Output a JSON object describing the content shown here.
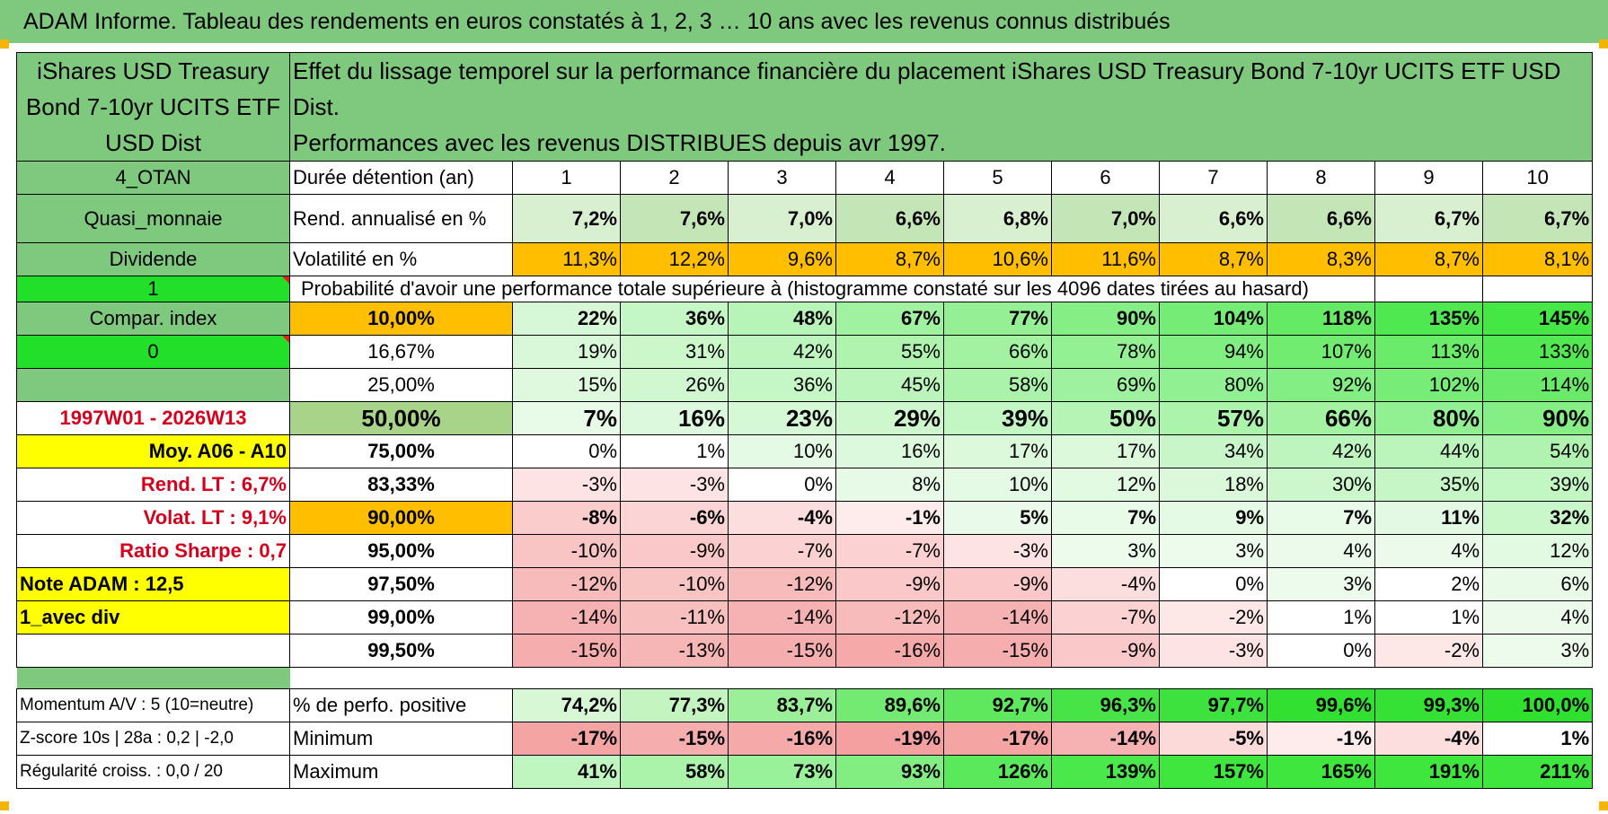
{
  "title": "ADAM Informe. Tableau des rendements en euros constatés à 1, 2, 3 … 10 ans avec les revenus connus distribués",
  "fund_name": "iShares USD Treasury Bond 7-10yr UCITS ETF USD Dist",
  "header_text": {
    "line1": "Effet du lissage temporel sur la performance financière du placement iShares USD Treasury Bond 7-10yr UCITS ETF USD Dist.",
    "line2": "Performances avec les revenus DISTRIBUES depuis avr 1997."
  },
  "side": {
    "category": "4_OTAN",
    "class": "Quasi_monnaie",
    "dividend_label": "Dividende",
    "dividend_value": "1",
    "compar_label": "Compar. index",
    "compar_value": "0",
    "period": "1997W01 - 2026W13",
    "avg": "Moy. A06 - A10",
    "rend_lt": "Rend. LT :   6,7%",
    "volat_lt": "Volat. LT :   9,1%",
    "sharpe": "Ratio Sharpe :    0,7",
    "note": "Note ADAM : 12,5",
    "avec_div": "1_avec div",
    "momentum": "Momentum A/V : 5 (10=neutre)",
    "zscore": "Z-score 10s | 28a : 0,2 | -2,0",
    "regularite": "Régularité croiss. : 0,0 / 20"
  },
  "years_label": "Durée détention (an)",
  "years": [
    "1",
    "2",
    "3",
    "4",
    "5",
    "6",
    "7",
    "8",
    "9",
    "10"
  ],
  "rend": {
    "label": "Rend. annualisé en %",
    "values": [
      "7,2%",
      "7,6%",
      "7,0%",
      "6,6%",
      "6,8%",
      "7,0%",
      "6,6%",
      "6,6%",
      "6,7%",
      "6,7%"
    ]
  },
  "vol": {
    "label": "Volatilité en %",
    "values": [
      "11,3%",
      "12,2%",
      "9,6%",
      "8,7%",
      "10,6%",
      "11,6%",
      "8,7%",
      "8,3%",
      "8,7%",
      "8,1%"
    ]
  },
  "prob_title": "Probabilité d'avoir une performance totale supérieure à (histogramme constaté sur les 4096 dates tirées au hasard)",
  "percentiles": [
    {
      "label": "10,00%",
      "values": [
        "22%",
        "36%",
        "48%",
        "67%",
        "77%",
        "90%",
        "104%",
        "118%",
        "135%",
        "145%"
      ]
    },
    {
      "label": "16,67%",
      "values": [
        "19%",
        "31%",
        "42%",
        "55%",
        "66%",
        "78%",
        "94%",
        "107%",
        "113%",
        "133%"
      ]
    },
    {
      "label": "25,00%",
      "values": [
        "15%",
        "26%",
        "36%",
        "45%",
        "58%",
        "69%",
        "80%",
        "92%",
        "102%",
        "114%"
      ]
    },
    {
      "label": "50,00%",
      "values": [
        "7%",
        "16%",
        "23%",
        "29%",
        "39%",
        "50%",
        "57%",
        "66%",
        "80%",
        "90%"
      ]
    },
    {
      "label": "75,00%",
      "values": [
        "0%",
        "1%",
        "10%",
        "16%",
        "17%",
        "17%",
        "34%",
        "42%",
        "44%",
        "54%"
      ]
    },
    {
      "label": "83,33%",
      "values": [
        "-3%",
        "-3%",
        "0%",
        "8%",
        "10%",
        "12%",
        "18%",
        "30%",
        "35%",
        "39%"
      ]
    },
    {
      "label": "90,00%",
      "values": [
        "-8%",
        "-6%",
        "-4%",
        "-1%",
        "5%",
        "7%",
        "9%",
        "7%",
        "11%",
        "32%"
      ]
    },
    {
      "label": "95,00%",
      "values": [
        "-10%",
        "-9%",
        "-7%",
        "-7%",
        "-3%",
        "3%",
        "3%",
        "4%",
        "4%",
        "12%"
      ]
    },
    {
      "label": "97,50%",
      "values": [
        "-12%",
        "-10%",
        "-12%",
        "-9%",
        "-9%",
        "-4%",
        "0%",
        "3%",
        "2%",
        "6%"
      ]
    },
    {
      "label": "99,00%",
      "values": [
        "-14%",
        "-11%",
        "-14%",
        "-12%",
        "-14%",
        "-7%",
        "-2%",
        "1%",
        "1%",
        "4%"
      ]
    },
    {
      "label": "99,50%",
      "values": [
        "-15%",
        "-13%",
        "-15%",
        "-16%",
        "-15%",
        "-9%",
        "-3%",
        "0%",
        "-2%",
        "3%"
      ]
    }
  ],
  "stats": [
    {
      "label": "% de perfo. positive",
      "values": [
        "74,2%",
        "77,3%",
        "83,7%",
        "89,6%",
        "92,7%",
        "96,3%",
        "97,7%",
        "99,6%",
        "99,3%",
        "100,0%"
      ]
    },
    {
      "label": "Minimum",
      "values": [
        "-17%",
        "-15%",
        "-16%",
        "-19%",
        "-17%",
        "-14%",
        "-5%",
        "-1%",
        "-4%",
        "1%"
      ]
    },
    {
      "label": "Maximum",
      "values": [
        "41%",
        "58%",
        "73%",
        "93%",
        "126%",
        "139%",
        "157%",
        "165%",
        "191%",
        "211%"
      ]
    }
  ],
  "colors": {
    "header_green": "#7ec97e",
    "lime": "#22e02a",
    "yellow": "#ffff00",
    "orange": "#ffbf00",
    "red_text": "#d4001c"
  }
}
